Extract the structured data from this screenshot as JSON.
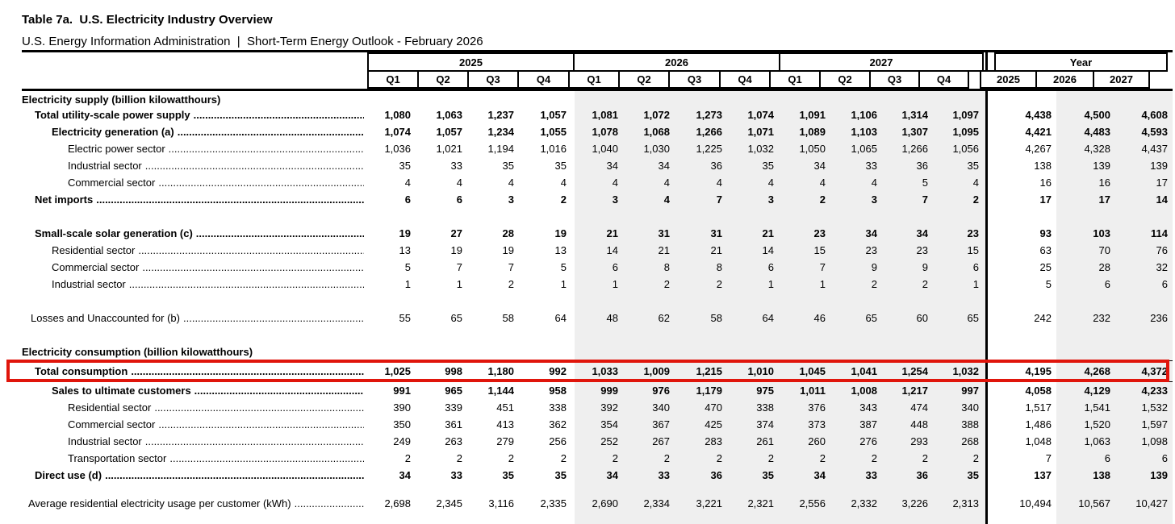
{
  "title": "Table 7a.  U.S. Electricity Industry Overview",
  "subtitle": "U.S. Energy Information Administration  |  Short-Term Energy Outlook - February 2026",
  "colors": {
    "highlight_red": "#e0150b",
    "shade_gray": "#efefef",
    "rule_black": "#000000"
  },
  "header": {
    "groups": [
      {
        "label": "2025",
        "subcols": [
          "Q1",
          "Q2",
          "Q3",
          "Q4"
        ]
      },
      {
        "label": "2026",
        "subcols": [
          "Q1",
          "Q2",
          "Q3",
          "Q4"
        ]
      },
      {
        "label": "2027",
        "subcols": [
          "Q1",
          "Q2",
          "Q3",
          "Q4"
        ]
      },
      {
        "label": "Year",
        "subcols": [
          "2025",
          "2026",
          "2027"
        ]
      }
    ]
  },
  "rows": [
    {
      "type": "section",
      "label": "Electricity supply (billion kilowatthours)"
    },
    {
      "label": "Total utility-scale power supply",
      "lv": 1,
      "bold": true,
      "values": [
        "1,080",
        "1,063",
        "1,237",
        "1,057",
        "1,081",
        "1,072",
        "1,273",
        "1,074",
        "1,091",
        "1,106",
        "1,314",
        "1,097",
        "4,438",
        "4,500",
        "4,608"
      ]
    },
    {
      "label": "Electricity generation (a)",
      "lv": 2,
      "bold": true,
      "values": [
        "1,074",
        "1,057",
        "1,234",
        "1,055",
        "1,078",
        "1,068",
        "1,266",
        "1,071",
        "1,089",
        "1,103",
        "1,307",
        "1,095",
        "4,421",
        "4,483",
        "4,593"
      ]
    },
    {
      "label": "Electric power sector",
      "lv": 3,
      "bold": false,
      "values": [
        "1,036",
        "1,021",
        "1,194",
        "1,016",
        "1,040",
        "1,030",
        "1,225",
        "1,032",
        "1,050",
        "1,065",
        "1,266",
        "1,056",
        "4,267",
        "4,328",
        "4,437"
      ]
    },
    {
      "label": "Industrial sector",
      "lv": 3,
      "bold": false,
      "values": [
        "35",
        "33",
        "35",
        "35",
        "34",
        "34",
        "36",
        "35",
        "34",
        "33",
        "36",
        "35",
        "138",
        "139",
        "139"
      ]
    },
    {
      "label": "Commercial sector",
      "lv": 3,
      "bold": false,
      "values": [
        "4",
        "4",
        "4",
        "4",
        "4",
        "4",
        "4",
        "4",
        "4",
        "4",
        "5",
        "4",
        "16",
        "16",
        "17"
      ]
    },
    {
      "label": "Net imports",
      "lv": 1,
      "bold": true,
      "values": [
        "6",
        "6",
        "3",
        "2",
        "3",
        "4",
        "7",
        "3",
        "2",
        "3",
        "7",
        "2",
        "17",
        "17",
        "14"
      ]
    },
    {
      "type": "spacer"
    },
    {
      "label": "Small-scale solar generation (c)",
      "lv": 1,
      "bold": true,
      "values": [
        "19",
        "27",
        "28",
        "19",
        "21",
        "31",
        "31",
        "21",
        "23",
        "34",
        "34",
        "23",
        "93",
        "103",
        "114"
      ]
    },
    {
      "label": "Residential sector",
      "lv": 2,
      "bold": false,
      "values": [
        "13",
        "19",
        "19",
        "13",
        "14",
        "21",
        "21",
        "14",
        "15",
        "23",
        "23",
        "15",
        "63",
        "70",
        "76"
      ]
    },
    {
      "label": "Commercial sector",
      "lv": 2,
      "bold": false,
      "values": [
        "5",
        "7",
        "7",
        "5",
        "6",
        "8",
        "8",
        "6",
        "7",
        "9",
        "9",
        "6",
        "25",
        "28",
        "32"
      ]
    },
    {
      "label": "Industrial sector",
      "lv": 2,
      "bold": false,
      "values": [
        "1",
        "1",
        "2",
        "1",
        "1",
        "2",
        "2",
        "1",
        "1",
        "2",
        "2",
        "1",
        "5",
        "6",
        "6"
      ]
    },
    {
      "type": "spacer"
    },
    {
      "label": "Losses and Unaccounted for (b)",
      "lv": 4,
      "bold": false,
      "values": [
        "55",
        "65",
        "58",
        "64",
        "48",
        "62",
        "58",
        "64",
        "46",
        "65",
        "60",
        "65",
        "242",
        "232",
        "236"
      ]
    },
    {
      "type": "spacer"
    },
    {
      "type": "section",
      "label": "Electricity consumption (billion kilowatthours)"
    },
    {
      "label": "Total consumption",
      "lv": 1,
      "bold": true,
      "highlighted": true,
      "values": [
        "1,025",
        "998",
        "1,180",
        "992",
        "1,033",
        "1,009",
        "1,215",
        "1,010",
        "1,045",
        "1,041",
        "1,254",
        "1,032",
        "4,195",
        "4,268",
        "4,372"
      ]
    },
    {
      "label": "Sales to ultimate customers",
      "lv": 2,
      "bold": true,
      "values": [
        "991",
        "965",
        "1,144",
        "958",
        "999",
        "976",
        "1,179",
        "975",
        "1,011",
        "1,008",
        "1,217",
        "997",
        "4,058",
        "4,129",
        "4,233"
      ]
    },
    {
      "label": "Residential sector",
      "lv": 3,
      "bold": false,
      "values": [
        "390",
        "339",
        "451",
        "338",
        "392",
        "340",
        "470",
        "338",
        "376",
        "343",
        "474",
        "340",
        "1,517",
        "1,541",
        "1,532"
      ]
    },
    {
      "label": "Commercial sector",
      "lv": 3,
      "bold": false,
      "values": [
        "350",
        "361",
        "413",
        "362",
        "354",
        "367",
        "425",
        "374",
        "373",
        "387",
        "448",
        "388",
        "1,486",
        "1,520",
        "1,597"
      ]
    },
    {
      "label": "Industrial sector",
      "lv": 3,
      "bold": false,
      "values": [
        "249",
        "263",
        "279",
        "256",
        "252",
        "267",
        "283",
        "261",
        "260",
        "276",
        "293",
        "268",
        "1,048",
        "1,063",
        "1,098"
      ]
    },
    {
      "label": "Transportation sector",
      "lv": 3,
      "bold": false,
      "values": [
        "2",
        "2",
        "2",
        "2",
        "2",
        "2",
        "2",
        "2",
        "2",
        "2",
        "2",
        "2",
        "7",
        "6",
        "6"
      ]
    },
    {
      "label": "Direct use (d)",
      "lv": 1,
      "bold": true,
      "values": [
        "34",
        "33",
        "35",
        "35",
        "34",
        "33",
        "36",
        "35",
        "34",
        "33",
        "36",
        "35",
        "137",
        "138",
        "139"
      ]
    },
    {
      "type": "spacer",
      "small": true
    },
    {
      "label": "Average residential electricity usage per customer (kWh)",
      "lv": 5,
      "bold": false,
      "values": [
        "2,698",
        "2,345",
        "3,116",
        "2,335",
        "2,690",
        "2,334",
        "3,221",
        "2,321",
        "2,556",
        "2,332",
        "3,226",
        "2,313",
        "10,494",
        "10,567",
        "10,427"
      ]
    }
  ]
}
